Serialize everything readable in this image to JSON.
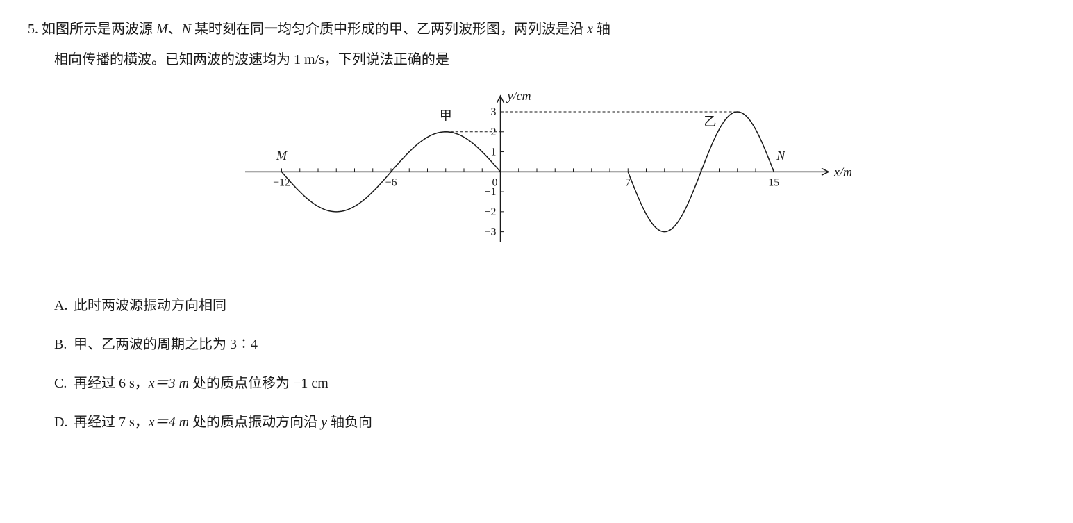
{
  "problem": {
    "number": "5.",
    "text_line1_pre": "如图所示是两波源 ",
    "M": "M",
    "text_line1_sep": "、",
    "N": "N",
    "text_line1_post": " 某时刻在同一均匀介质中形成的甲、乙两列波形图，两列波是沿 ",
    "x_var": "x",
    "text_line1_end": " 轴",
    "text_line2": "相向传播的横波。已知两波的波速均为 1 m/s，下列说法正确的是"
  },
  "chart": {
    "type": "line",
    "x_range": [
      -14,
      18
    ],
    "y_range": [
      -3.5,
      3.8
    ],
    "x_ticks": [
      -12,
      -11,
      -10,
      -9,
      -8,
      -7,
      -6,
      -5,
      -4,
      -3,
      -2,
      -1,
      1,
      2,
      3,
      4,
      5,
      6,
      7,
      8,
      9,
      10,
      11,
      12,
      13,
      14,
      15
    ],
    "x_tick_labels": [
      {
        "x": -12,
        "label": "−12"
      },
      {
        "x": -6,
        "label": "−6"
      },
      {
        "x": 0,
        "label": "0"
      },
      {
        "x": 7,
        "label": "7"
      },
      {
        "x": 15,
        "label": "15"
      }
    ],
    "y_ticks": [
      -3,
      -2,
      -1,
      1,
      2,
      3
    ],
    "y_tick_labels": [
      {
        "y": -3,
        "label": "−3"
      },
      {
        "y": -2,
        "label": "−2"
      },
      {
        "y": -1,
        "label": "−1"
      },
      {
        "y": 1,
        "label": "1"
      },
      {
        "y": 2,
        "label": "2"
      },
      {
        "y": 3,
        "label": "3"
      }
    ],
    "x_axis_label": "x/m",
    "y_axis_label": "y/cm",
    "label_M": "M",
    "label_N": "N",
    "label_jia": "甲",
    "label_yi": "乙",
    "wave_color": "#1a1a1a",
    "axis_color": "#1a1a1a",
    "dash_color": "#1a1a1a",
    "background_color": "#ffffff",
    "label_fontsize": 18,
    "axis_label_fontsize": 18,
    "tick_fontsize": 16,
    "line_width": 1.5,
    "tick_length": 5,
    "wave_jia": {
      "wavelength": 12,
      "amplitude": 2,
      "x_start": -12,
      "x_end": 0
    },
    "wave_yi": {
      "wavelength": 8,
      "amplitude": 3,
      "x_start": 7,
      "x_end": 15
    },
    "dash_lines": [
      {
        "x1": -3,
        "y1": 2,
        "x2": 0,
        "y2": 2
      },
      {
        "x1": 0,
        "y1": 3,
        "x2": 13,
        "y2": 3
      }
    ]
  },
  "choices": {
    "A": {
      "label": "A.",
      "text": "此时两波源振动方向相同"
    },
    "B": {
      "label": "B.",
      "text": "甲、乙两波的周期之比为 3∶4"
    },
    "C": {
      "label": "C.",
      "text_pre": "再经过 6 s，",
      "x_eq": "x＝3 m",
      "text_post": " 处的质点位移为 −1 cm"
    },
    "D": {
      "label": "D.",
      "text_pre": "再经过 7 s，",
      "x_eq": "x＝4 m",
      "text_post": " 处的质点振动方向沿 ",
      "y_var": "y",
      "text_end": " 轴负向"
    }
  }
}
